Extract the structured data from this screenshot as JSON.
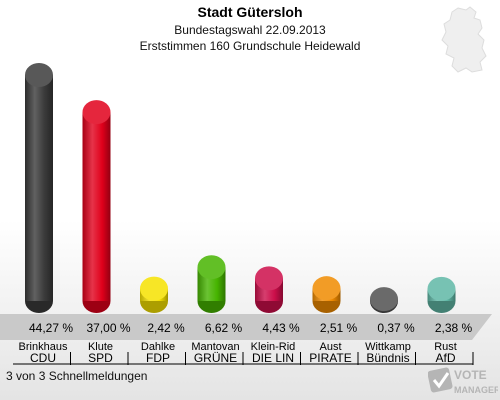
{
  "header": {
    "title": "Stadt Gütersloh",
    "subtitle": "Bundestagswahl 22.09.2013",
    "subtitle2": "Erststimmen 160 Grundschule Heidewald"
  },
  "footer": {
    "note": "3 von 3 Schnellmeldungen",
    "logo_line1": "VOTE",
    "logo_line2": "MANAGER"
  },
  "chart_data": {
    "type": "bar",
    "title": "Stadt Gütersloh",
    "subtitle": "Bundestagswahl 22.09.2013 · Erststimmen 160 Grundschule Heidewald",
    "categories": [
      "CDU",
      "SPD",
      "FDP",
      "GRÜNE",
      "DIE LINKE",
      "PIRATEN",
      "Bündnis",
      "AfD"
    ],
    "candidates": [
      "Brinkhaus",
      "Klute",
      "Dahlke",
      "Mantovan",
      "Klein-Rid",
      "Aust",
      "Wittkamp",
      "Rust"
    ],
    "display_parties": [
      "CDU",
      "SPD",
      "FDP",
      "GRÜNE",
      "DIE LIN",
      "PIRATE",
      "Bündnis",
      "AfD"
    ],
    "values": [
      44.27,
      37.0,
      2.42,
      6.62,
      4.43,
      2.51,
      0.37,
      2.38
    ],
    "labels": [
      "44,27 %",
      "37,00 %",
      "2,42 %",
      "6,62 %",
      "4,43 %",
      "2,51 %",
      "0,37 %",
      "2,38 %"
    ],
    "colors": [
      "#3a3a3a",
      "#e0001b",
      "#f5e100",
      "#46b400",
      "#cc0e4a",
      "#f08a00",
      "#505050",
      "#5fb7a5"
    ],
    "ylim": [
      0,
      44.27
    ],
    "unit": "%",
    "legend": "none",
    "grid": false
  }
}
